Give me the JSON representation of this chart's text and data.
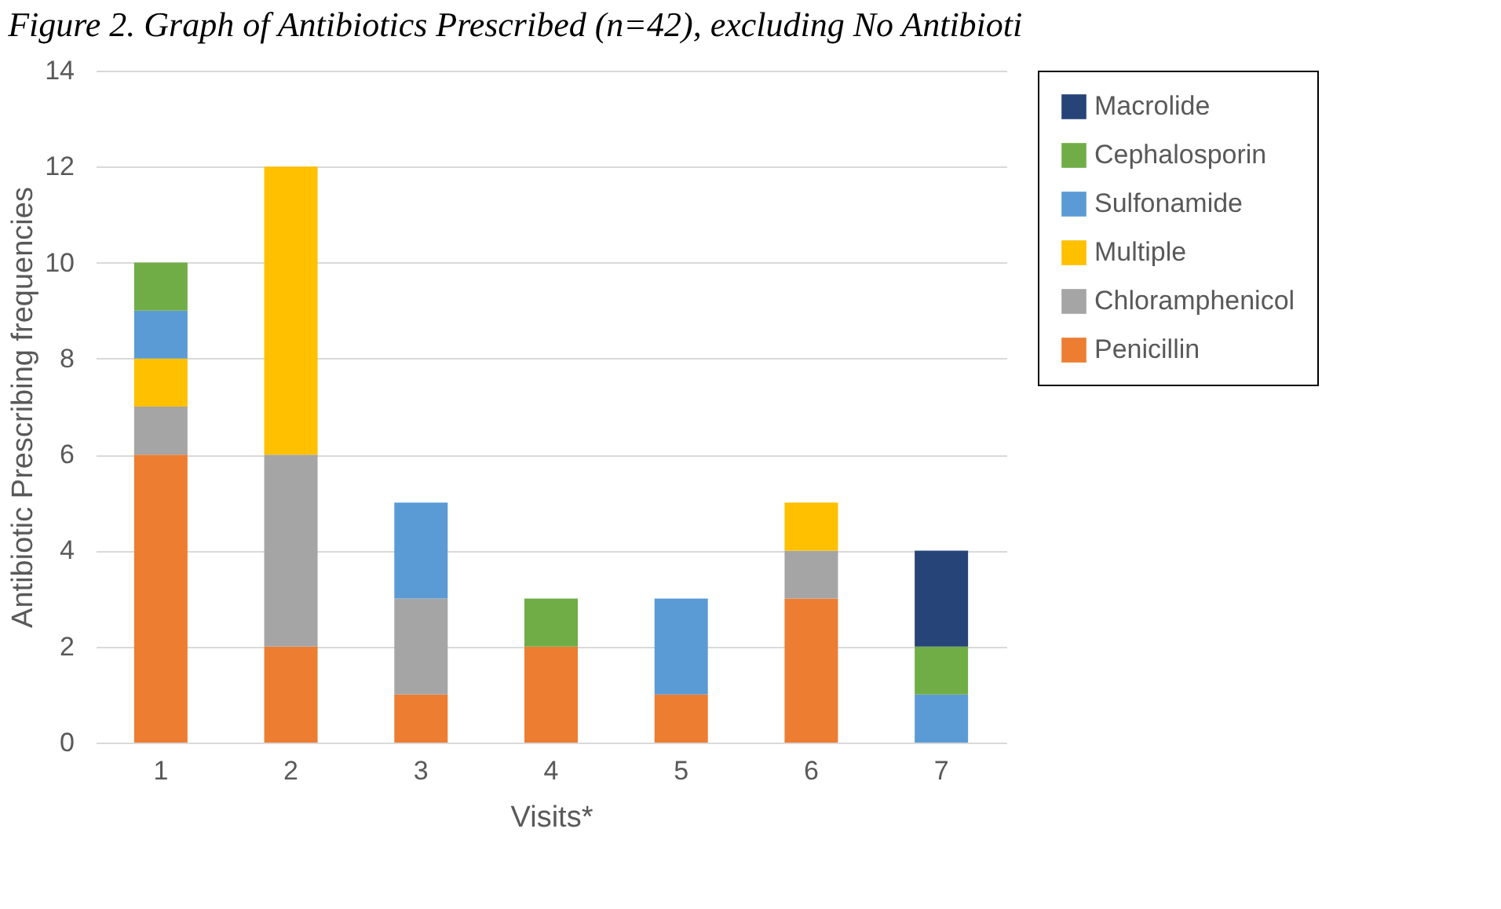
{
  "chart_data": {
    "type": "bar",
    "title": "Figure 2. Graph of Antibiotics Prescribed (n=42), excluding No Antibioti",
    "xlabel": "Visits*",
    "ylabel": "Antibiotic Prescribing frequencies",
    "categories": [
      "1",
      "2",
      "3",
      "4",
      "5",
      "6",
      "7"
    ],
    "stacked": true,
    "series": [
      {
        "name": "Penicillin",
        "color": "#ed7d31",
        "values": [
          6,
          2,
          1,
          2,
          1,
          3,
          null
        ]
      },
      {
        "name": "Chloramphenicol",
        "color": "#a5a5a5",
        "values": [
          1,
          4,
          2,
          null,
          null,
          1,
          null
        ]
      },
      {
        "name": "Multiple",
        "color": "#ffc000",
        "values": [
          1,
          6,
          null,
          null,
          null,
          1,
          null
        ]
      },
      {
        "name": "Sulfonamide",
        "color": "#5b9bd5",
        "values": [
          1,
          null,
          2,
          null,
          2,
          null,
          1
        ]
      },
      {
        "name": "Cephalosporin",
        "color": "#70ad47",
        "values": [
          1,
          null,
          null,
          1,
          null,
          null,
          1
        ]
      },
      {
        "name": "Macrolide",
        "color": "#264478",
        "values": [
          null,
          null,
          null,
          null,
          null,
          null,
          2
        ]
      }
    ],
    "ylim": [
      0,
      14
    ],
    "yticks": [
      0,
      2,
      4,
      6,
      8,
      10,
      12,
      14
    ],
    "grid": "y",
    "legend": "right"
  }
}
